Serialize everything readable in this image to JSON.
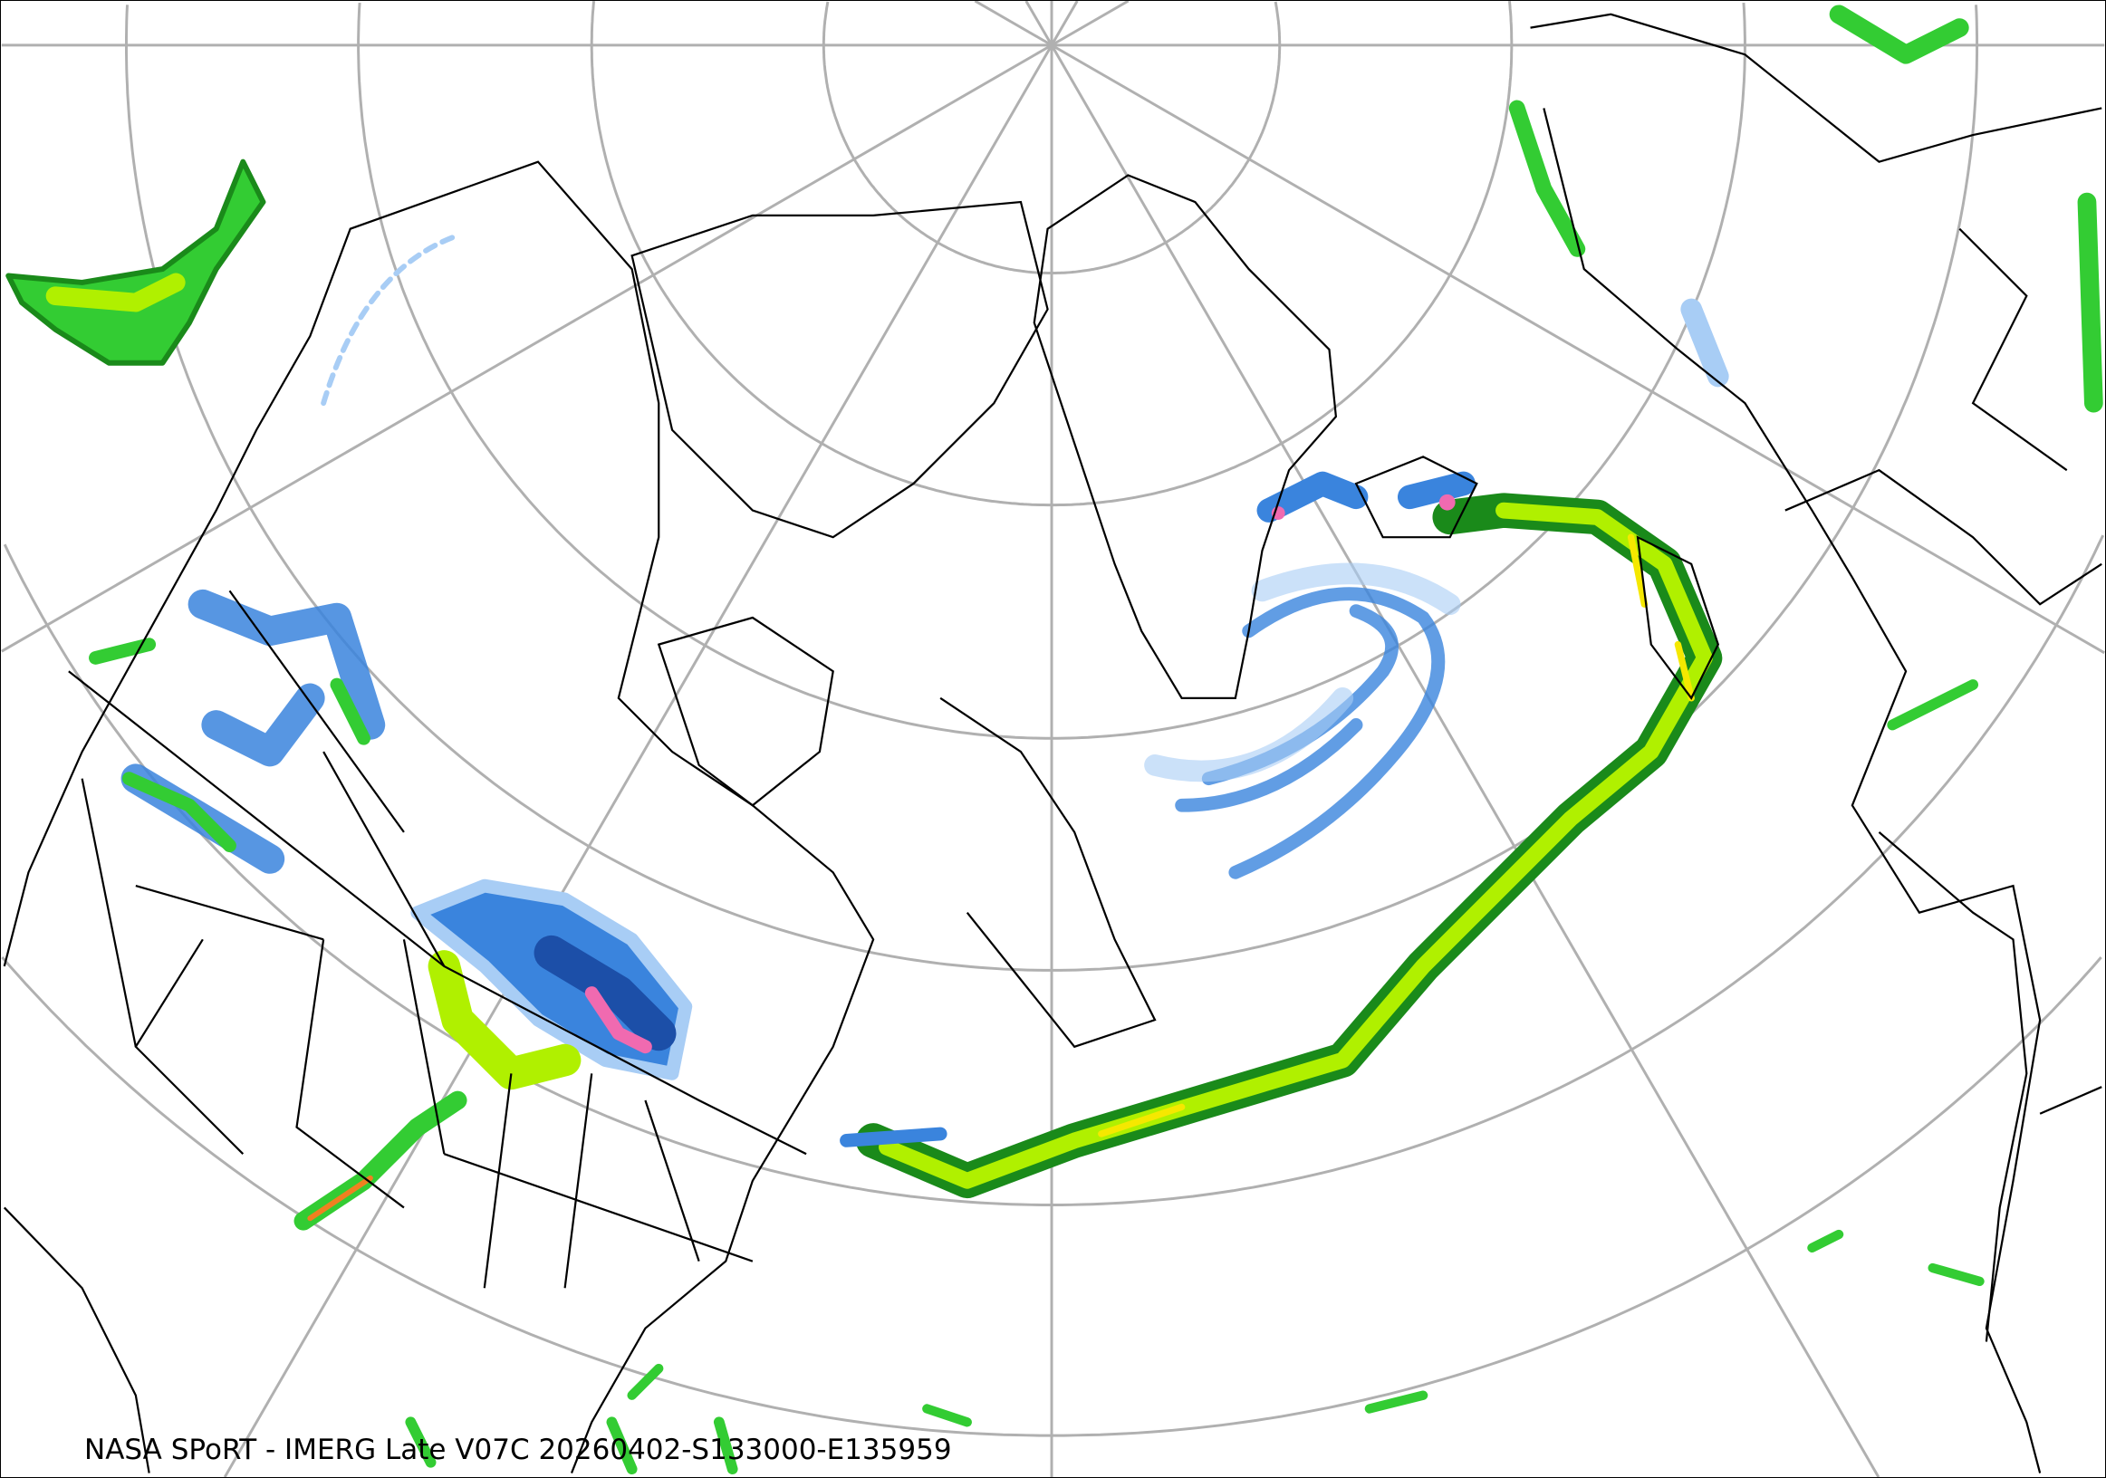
{
  "caption": "NASA SPoRT - IMERG Late V07C 20260402-S133000-E135959",
  "colors": {
    "graticule": "#b0b0b0",
    "coastline": "#000000",
    "precip_light_blue": "#a8cdf5",
    "precip_blue": "#3a84dd",
    "precip_dark_blue": "#1c4fa8",
    "precip_pink": "#f06ab0",
    "precip_dark_green": "#1a8a1a",
    "precip_green": "#33cc33",
    "precip_light_green": "#b0f000",
    "precip_yellow": "#f5e800",
    "precip_orange": "#f08020"
  }
}
